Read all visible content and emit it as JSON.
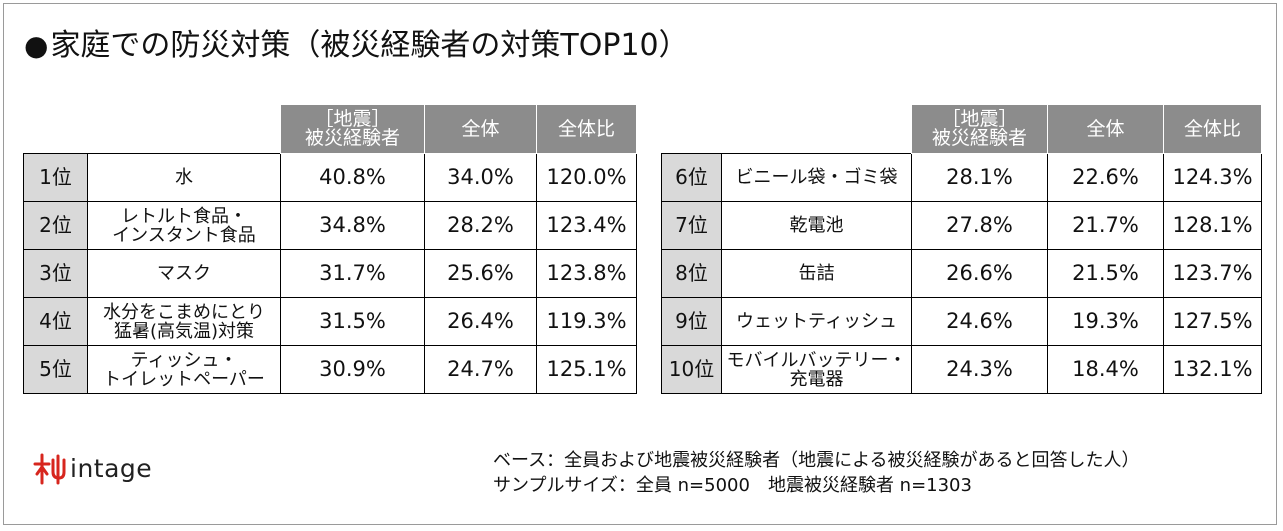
{
  "title": "家庭での防災対策（被災経験者の対策TOP10）",
  "title_bullet": "●",
  "headers": {
    "col1_line1": "［地震］",
    "col1_line2": "被災経験者",
    "col2": "全体",
    "col3": "全体比"
  },
  "left_rows": [
    {
      "rank": "1位",
      "item_line1": "水",
      "item_line2": "",
      "experienced": "40.8%",
      "overall": "34.0%",
      "ratio": "120.0%"
    },
    {
      "rank": "2位",
      "item_line1": "レトルト食品・",
      "item_line2": "インスタント食品",
      "experienced": "34.8%",
      "overall": "28.2%",
      "ratio": "123.4%"
    },
    {
      "rank": "3位",
      "item_line1": "マスク",
      "item_line2": "",
      "experienced": "31.7%",
      "overall": "25.6%",
      "ratio": "123.8%"
    },
    {
      "rank": "4位",
      "item_line1": "水分をこまめにとり",
      "item_line2": "猛暑(高気温)対策",
      "experienced": "31.5%",
      "overall": "26.4%",
      "ratio": "119.3%"
    },
    {
      "rank": "5位",
      "item_line1": "ティッシュ・",
      "item_line2": "トイレットペーパー",
      "experienced": "30.9%",
      "overall": "24.7%",
      "ratio": "125.1%"
    }
  ],
  "right_rows": [
    {
      "rank": "6位",
      "item_line1": "ビニール袋・ゴミ袋",
      "item_line2": "",
      "experienced": "28.1%",
      "overall": "22.6%",
      "ratio": "124.3%"
    },
    {
      "rank": "7位",
      "item_line1": "乾電池",
      "item_line2": "",
      "experienced": "27.8%",
      "overall": "21.7%",
      "ratio": "128.1%"
    },
    {
      "rank": "8位",
      "item_line1": "缶詰",
      "item_line2": "",
      "experienced": "26.6%",
      "overall": "21.5%",
      "ratio": "123.7%"
    },
    {
      "rank": "9位",
      "item_line1": "ウェットティッシュ",
      "item_line2": "",
      "experienced": "24.6%",
      "overall": "19.3%",
      "ratio": "127.5%"
    },
    {
      "rank": "10位",
      "item_line1": "モバイルバッテリー・",
      "item_line2": "充電器",
      "experienced": "24.3%",
      "overall": "18.4%",
      "ratio": "132.1%"
    }
  ],
  "logo": {
    "text": "intage",
    "icon": "intage-logo-mark-icon",
    "color": "#d7261e"
  },
  "footnote": {
    "line1": "ベース：全員および地震被災経験者（地震による被災経験があると回答した人）",
    "line2": "サンプルサイズ：全員 n=5000　地震被災経験者 n=1303"
  },
  "colors": {
    "header_bg": "#8c8c8c",
    "rank_bg": "#d9d9d9",
    "border": "#000000"
  }
}
